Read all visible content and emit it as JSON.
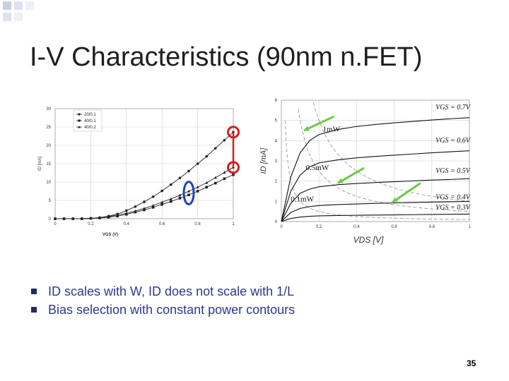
{
  "slide": {
    "title": "I-V Characteristics (90nm n.FET)",
    "page_number": "35",
    "bullets": [
      {
        "icon": "square-bullet-icon",
        "text": "ID scales with W, ID does not scale with 1/L"
      },
      {
        "icon": "square-bullet-icon",
        "text": "Bias selection with constant power contours"
      }
    ],
    "colors": {
      "title": "#1f1f1f",
      "bullet_text": "#2e3a8c",
      "highlight_red": "#d42020",
      "highlight_blue": "#2040c0",
      "arrow_green": "#66cc44"
    }
  },
  "chart_data": [
    {
      "type": "line",
      "xlabel": "VGS (V)",
      "ylabel": "ID [mA]",
      "xlim": [
        0,
        1
      ],
      "ylim": [
        0,
        30
      ],
      "x_ticks": [
        "0",
        "0.2",
        "0.4",
        "0.6",
        "0.8",
        "1"
      ],
      "y_ticks": [
        "0",
        "5",
        "10",
        "15",
        "20",
        "25",
        "30"
      ],
      "grid": true,
      "legend_position": "top-left",
      "series": [
        {
          "name": "20/0.1",
          "marker": "circle",
          "x": [
            0,
            0.05,
            0.1,
            0.15,
            0.2,
            0.25,
            0.3,
            0.35,
            0.4,
            0.45,
            0.5,
            0.55,
            0.6,
            0.65,
            0.7,
            0.75,
            0.8,
            0.85,
            0.9,
            0.95,
            1.0
          ],
          "y": [
            0,
            0,
            0,
            0,
            0.1,
            0.3,
            0.7,
            1.3,
            2.2,
            3.3,
            4.6,
            6.0,
            7.6,
            9.3,
            11.1,
            13.0,
            15.0,
            17.0,
            19.2,
            21.4,
            23.6
          ]
        },
        {
          "name": "40/0.1",
          "marker": "square",
          "x": [
            0,
            0.05,
            0.1,
            0.15,
            0.2,
            0.25,
            0.3,
            0.35,
            0.4,
            0.45,
            0.5,
            0.55,
            0.6,
            0.65,
            0.7,
            0.75,
            0.8,
            0.85,
            0.9,
            0.95,
            1.0
          ],
          "y": [
            0,
            0,
            0,
            0,
            0.1,
            0.2,
            0.4,
            0.7,
            1.2,
            1.8,
            2.4,
            3.1,
            3.9,
            4.7,
            5.6,
            6.5,
            7.5,
            8.6,
            9.7,
            10.9,
            12.0
          ]
        },
        {
          "name": "40/0.2",
          "marker": "triangle",
          "x": [
            0,
            0.05,
            0.1,
            0.15,
            0.2,
            0.25,
            0.3,
            0.35,
            0.4,
            0.45,
            0.5,
            0.55,
            0.6,
            0.65,
            0.7,
            0.75,
            0.8,
            0.85,
            0.9,
            0.95,
            1.0
          ],
          "y": [
            0,
            0,
            0,
            0,
            0.1,
            0.3,
            0.6,
            1.0,
            1.5,
            2.1,
            2.8,
            3.6,
            4.5,
            5.4,
            6.4,
            7.5,
            8.6,
            9.8,
            11.2,
            12.6,
            14.0
          ]
        }
      ]
    },
    {
      "type": "line",
      "xlabel": "VDS [V]",
      "ylabel": "ID [mA]",
      "xlim": [
        0,
        1
      ],
      "ylim": [
        0,
        6
      ],
      "x_ticks": [
        "0",
        "0.2",
        "0.4",
        "0.6",
        "0.8",
        "1"
      ],
      "y_ticks": [
        "0",
        "1",
        "2",
        "3",
        "4",
        "5",
        "6"
      ],
      "grid": true,
      "curve_labels": [
        "VGS = 0.7V",
        "VGS = 0.6V",
        "VGS = 0.5V",
        "VGS = 0.4V",
        "VGS = 0.3V"
      ],
      "power_contour_labels": [
        "1mW",
        "0.5mW",
        "0.1mW"
      ],
      "series": [
        {
          "name": "VGS = 0.7V",
          "x": [
            0,
            0.05,
            0.1,
            0.15,
            0.2,
            0.3,
            0.4,
            0.5,
            0.6,
            0.7,
            0.8,
            0.9,
            1.0
          ],
          "y": [
            0,
            2.2,
            3.4,
            4.0,
            4.3,
            4.55,
            4.7,
            4.8,
            4.88,
            4.95,
            5.02,
            5.08,
            5.14
          ]
        },
        {
          "name": "VGS = 0.6V",
          "x": [
            0,
            0.05,
            0.1,
            0.15,
            0.2,
            0.3,
            0.4,
            0.5,
            0.6,
            0.7,
            0.8,
            0.9,
            1.0
          ],
          "y": [
            0,
            1.5,
            2.3,
            2.7,
            2.9,
            3.05,
            3.15,
            3.22,
            3.28,
            3.34,
            3.4,
            3.45,
            3.5
          ]
        },
        {
          "name": "VGS = 0.5V",
          "x": [
            0,
            0.05,
            0.1,
            0.15,
            0.2,
            0.3,
            0.4,
            0.5,
            0.6,
            0.7,
            0.8,
            0.9,
            1.0
          ],
          "y": [
            0,
            0.9,
            1.4,
            1.6,
            1.72,
            1.82,
            1.88,
            1.93,
            1.97,
            2.01,
            2.05,
            2.08,
            2.12
          ]
        },
        {
          "name": "VGS = 0.4V",
          "x": [
            0,
            0.05,
            0.1,
            0.15,
            0.2,
            0.3,
            0.4,
            0.5,
            0.6,
            0.7,
            0.8,
            0.9,
            1.0
          ],
          "y": [
            0,
            0.45,
            0.65,
            0.74,
            0.79,
            0.84,
            0.87,
            0.9,
            0.92,
            0.94,
            0.96,
            0.98,
            1.0
          ]
        },
        {
          "name": "VGS = 0.3V",
          "x": [
            0,
            0.05,
            0.1,
            0.15,
            0.2,
            0.3,
            0.4,
            0.5,
            0.6,
            0.7,
            0.8,
            0.9,
            1.0
          ],
          "y": [
            0,
            0.15,
            0.22,
            0.26,
            0.28,
            0.3,
            0.31,
            0.32,
            0.33,
            0.34,
            0.35,
            0.36,
            0.37
          ]
        }
      ],
      "power_contours_mW": [
        1,
        0.5,
        0.1
      ]
    }
  ]
}
